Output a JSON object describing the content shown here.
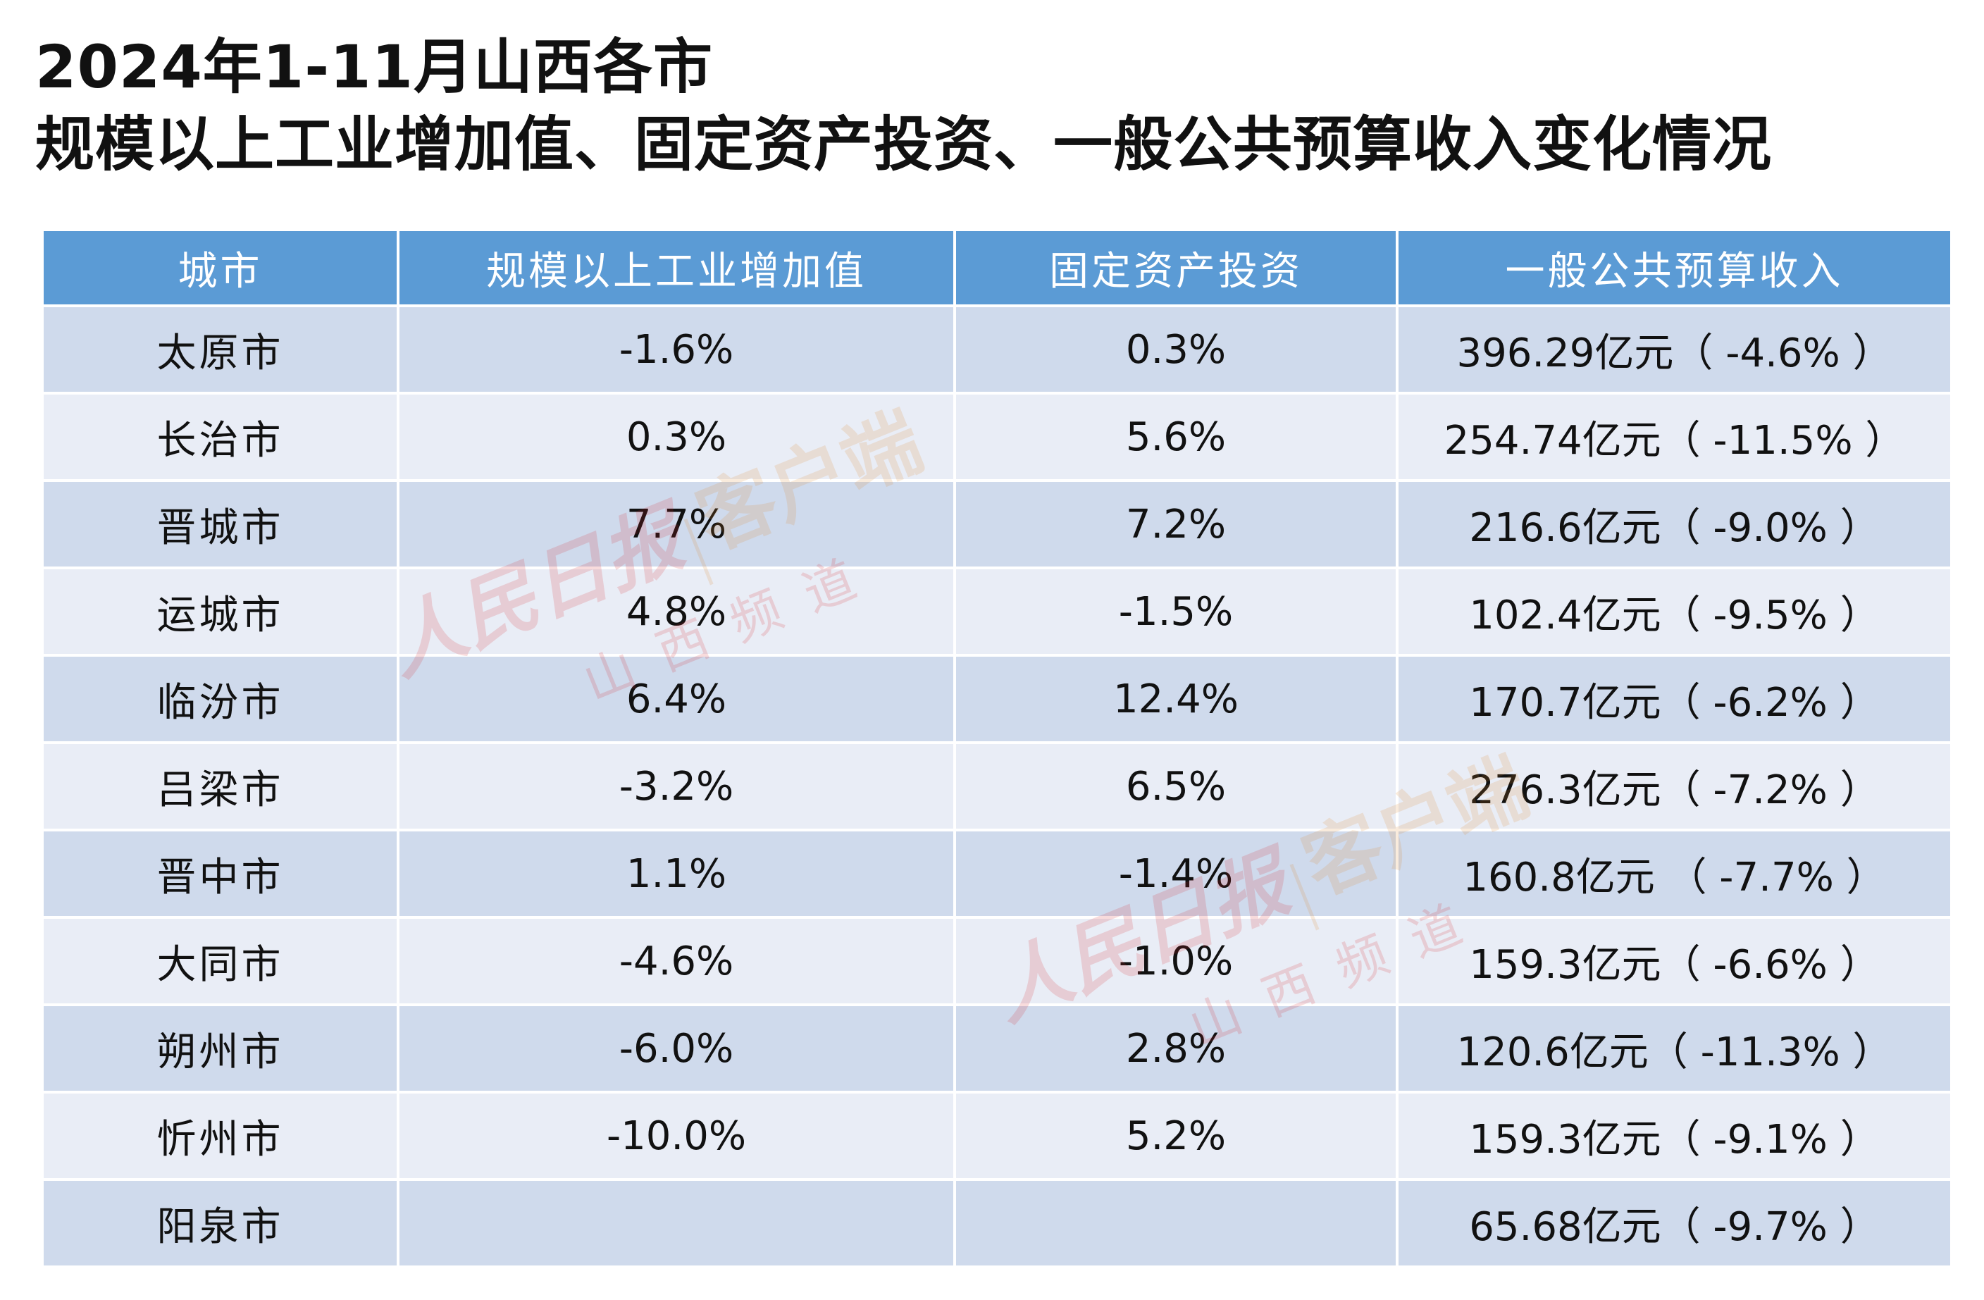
{
  "title": {
    "line1": "2024年1-11月山西各市",
    "line2": "规模以上工业增加值、固定资产投资、一般公共预算收入变化情况"
  },
  "table": {
    "headers": [
      "城市",
      "规模以上工业增加值",
      "固定资产投资",
      "一般公共预算收入"
    ],
    "rows": [
      {
        "city": "太原市",
        "industry": "-1.6%",
        "investment": "0.3%",
        "revenue": "396.29亿元（ -4.6% ）"
      },
      {
        "city": "长治市",
        "industry": "0.3%",
        "investment": "5.6%",
        "revenue": "254.74亿元（ -11.5% ）"
      },
      {
        "city": "晋城市",
        "industry": "7.7%",
        "investment": "7.2%",
        "revenue": "216.6亿元（ -9.0% ）"
      },
      {
        "city": "运城市",
        "industry": "4.8%",
        "investment": "-1.5%",
        "revenue": "102.4亿元（ -9.5% ）"
      },
      {
        "city": "临汾市",
        "industry": "6.4%",
        "investment": "12.4%",
        "revenue": "170.7亿元（ -6.2% ）"
      },
      {
        "city": "吕梁市",
        "industry": "-3.2%",
        "investment": "6.5%",
        "revenue": "276.3亿元（  -7.2% ）"
      },
      {
        "city": "晋中市",
        "industry": "1.1%",
        "investment": "-1.4%",
        "revenue": "160.8亿元 （ -7.7% ）"
      },
      {
        "city": "大同市",
        "industry": "-4.6%",
        "investment": "-1.0%",
        "revenue": "159.3亿元（ -6.6% ）"
      },
      {
        "city": "朔州市",
        "industry": "-6.0%",
        "investment": "2.8%",
        "revenue": "120.6亿元（ -11.3% ）"
      },
      {
        "city": "忻州市",
        "industry": "-10.0%",
        "investment": "5.2%",
        "revenue": "159.3亿元（ -9.1% ）"
      },
      {
        "city": "阳泉市",
        "industry": "",
        "investment": "",
        "revenue": "65.68亿元（ -9.7% ）"
      }
    ]
  },
  "watermark": {
    "brand": "人民日报",
    "client": "客户端",
    "channel": "山西频道"
  }
}
